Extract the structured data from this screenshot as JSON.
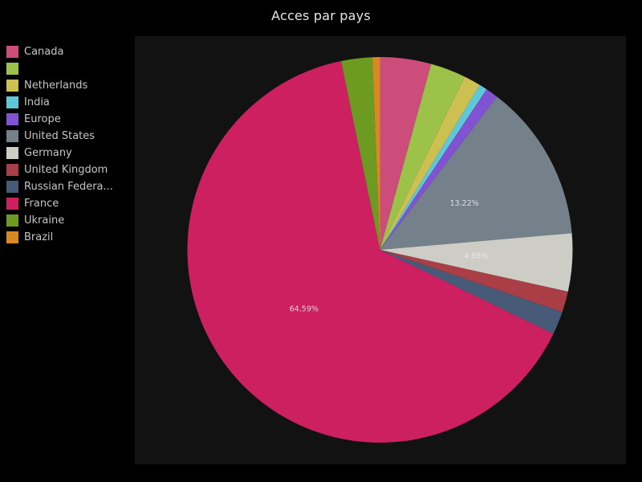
{
  "chart": {
    "title": "Acces par pays"
  },
  "theme": {
    "page_bg": "#000000",
    "panel_bg": "#121212",
    "title_color": "#e6e6e6",
    "legend_text_color": "#c6c6c6",
    "slice_label_color": "#ededed"
  },
  "chart_data": {
    "type": "pie",
    "title": "Acces par pays",
    "legend_position": "left",
    "start_angle_deg": 0,
    "direction": "clockwise",
    "unit": "%",
    "labels_shown_at_half_radius": true,
    "slices": [
      {
        "label": "Canada",
        "value": 4.28,
        "color": "#cc4d7a",
        "pct_label": ""
      },
      {
        "label": "",
        "value": 2.97,
        "color": "#9cc249",
        "pct_label": ""
      },
      {
        "label": "Netherlands",
        "value": 1.42,
        "color": "#ccc052",
        "pct_label": ""
      },
      {
        "label": "India",
        "value": 0.67,
        "color": "#5ec8d8",
        "pct_label": ""
      },
      {
        "label": "Europe",
        "value": 1.06,
        "color": "#8152d2",
        "pct_label": ""
      },
      {
        "label": "United States",
        "value": 13.22,
        "color": "#74808a",
        "pct_label": "13.22%"
      },
      {
        "label": "Germany",
        "value": 4.86,
        "color": "#cdccc5",
        "pct_label": "4.86%"
      },
      {
        "label": "United Kingdom",
        "value": 1.75,
        "color": "#a93e46",
        "pct_label": ""
      },
      {
        "label": "Russian Federa...",
        "value": 1.94,
        "color": "#475a78",
        "pct_label": ""
      },
      {
        "label": "France",
        "value": 64.59,
        "color": "#cc2061",
        "pct_label": "64.59%"
      },
      {
        "label": "Ukraine",
        "value": 2.6,
        "color": "#6d9b22",
        "pct_label": ""
      },
      {
        "label": "Brazil",
        "value": 0.64,
        "color": "#d68a24",
        "pct_label": ""
      }
    ]
  }
}
